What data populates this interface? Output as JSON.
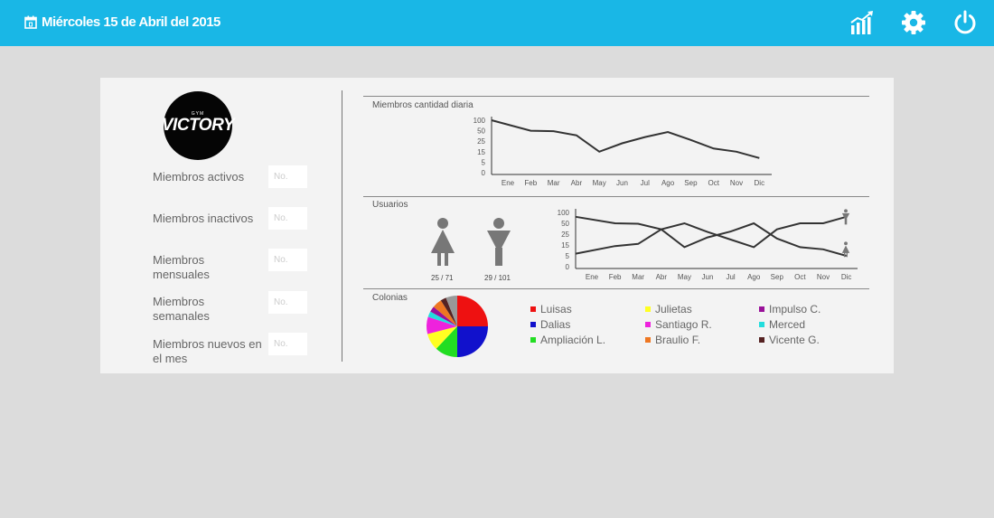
{
  "header": {
    "date": "Miércoles 15 de Abril del 2015",
    "icons": [
      "calendar-icon",
      "stats-icon",
      "gear-icon",
      "power-icon"
    ],
    "background": "#19b7e6"
  },
  "logo": {
    "small_text": "GYM",
    "main_text": "VICTORY"
  },
  "stats": [
    {
      "label": "Miembros activos",
      "placeholder": "No."
    },
    {
      "label": "Miembros inactivos",
      "placeholder": "No."
    },
    {
      "label": "Miembros mensuales",
      "placeholder": "No."
    },
    {
      "label": "Miembros semanales",
      "placeholder": "No."
    },
    {
      "label": "Miembros nuevos en el mes",
      "placeholder": "No."
    }
  ],
  "sections": {
    "daily": "Miembros cantidad diaria",
    "users": "Usuarios",
    "colonies": "Colonias"
  },
  "users": {
    "female_count": "25 / 71",
    "male_count": "29 / 101"
  },
  "chart_data": [
    {
      "type": "line",
      "title": "Miembros cantidad diaria",
      "categories": [
        "Ene",
        "Feb",
        "Mar",
        "Abr",
        "May",
        "Jun",
        "Jul",
        "Ago",
        "Sep",
        "Oct",
        "Nov",
        "Dic"
      ],
      "y_ticks": [
        "100",
        "50",
        "25",
        "15",
        "5",
        "0"
      ],
      "series": [
        {
          "values": [
            100,
            50,
            49,
            39,
            15,
            23,
            35,
            47,
            28,
            18,
            15,
            9
          ]
        }
      ]
    },
    {
      "type": "line",
      "title": "Usuarios",
      "categories": [
        "Ene",
        "Feb",
        "Mar",
        "Abr",
        "May",
        "Jun",
        "Jul",
        "Ago",
        "Sep",
        "Oct",
        "Nov",
        "Dic"
      ],
      "y_ticks": [
        "100",
        "50",
        "25",
        "15",
        "5",
        "0"
      ],
      "series": [
        {
          "values": [
            80,
            50,
            49,
            36,
            13,
            22,
            31,
            50,
            21,
            13,
            11,
            5
          ]
        },
        {
          "values": [
            7,
            14,
            16,
            36,
            50,
            30,
            20,
            13,
            36,
            50,
            50,
            80
          ]
        }
      ]
    },
    {
      "type": "pie",
      "title": "Colonias",
      "slices": [
        {
          "label": "Luisas",
          "value": 25,
          "color": "#ee1111"
        },
        {
          "label": "Dalias",
          "value": 25,
          "color": "#1111cc"
        },
        {
          "label": "Ampliación L.",
          "value": 12,
          "color": "#22dd22"
        },
        {
          "label": "Julietas",
          "value": 9,
          "color": "#ffff22"
        },
        {
          "label": "Santiago R.",
          "value": 9,
          "color": "#ee22dd"
        },
        {
          "label": "Merced",
          "value": 3,
          "color": "#22dddd"
        },
        {
          "label": "Impulso C.",
          "value": 3,
          "color": "#991199"
        },
        {
          "label": "Braulio F.",
          "value": 5,
          "color": "#ee7722"
        },
        {
          "label": "Vicente G.",
          "value": 3,
          "color": "#552222"
        },
        {
          "label": "",
          "value": 6,
          "color": "#999999"
        }
      ]
    }
  ],
  "legend": [
    {
      "label": "Luisas",
      "color": "#ee1111"
    },
    {
      "label": "Julietas",
      "color": "#ffff22"
    },
    {
      "label": "Impulso C.",
      "color": "#991199"
    },
    {
      "label": "Dalias",
      "color": "#1111cc"
    },
    {
      "label": "Santiago R.",
      "color": "#ee22dd"
    },
    {
      "label": "Merced",
      "color": "#22dddd"
    },
    {
      "label": "Ampliación L.",
      "color": "#22dd22"
    },
    {
      "label": "Braulio F.",
      "color": "#ee7722"
    },
    {
      "label": "Vicente G.",
      "color": "#552222"
    }
  ]
}
